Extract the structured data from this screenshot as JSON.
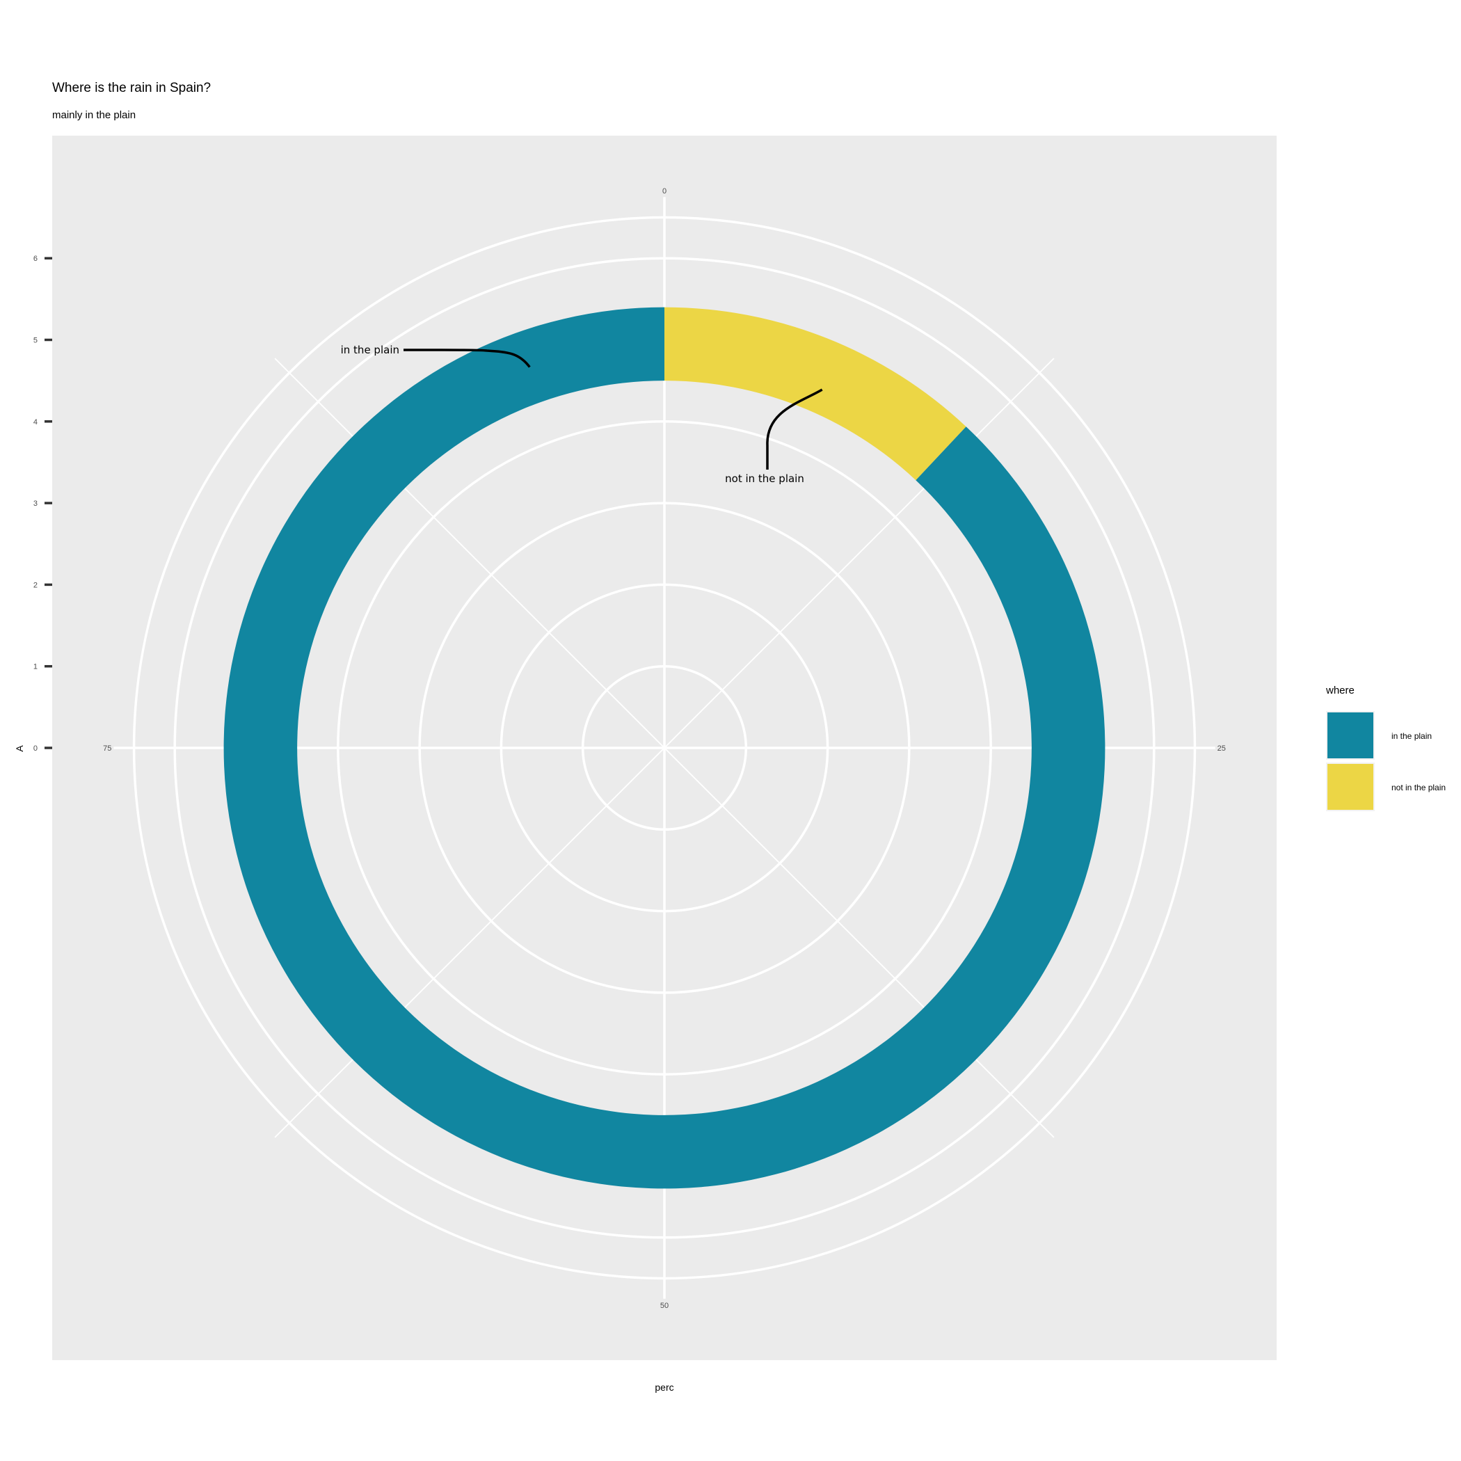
{
  "chart_data": {
    "type": "pie",
    "variant": "donut-polar",
    "title": "Where is the rain in Spain?",
    "subtitle": "mainly in the plain",
    "xlabel": "perc",
    "ylabel": "A",
    "categories": [
      "in the plain",
      "not in the plain"
    ],
    "values": [
      88,
      12
    ],
    "colors": [
      "#1186a0",
      "#ecd645"
    ],
    "ring_inner": 4.5,
    "ring_outer": 5.4,
    "y_ticks": [
      0,
      1,
      2,
      3,
      4,
      5,
      6
    ],
    "y_range": [
      0,
      6.75
    ],
    "theta_ticks": [
      0,
      25,
      50,
      75
    ],
    "theta_range": [
      0,
      100
    ],
    "grid": true,
    "annotations": [
      {
        "label": "in the plain",
        "category": "in the plain"
      },
      {
        "label": "not in the plain",
        "category": "not in the plain"
      }
    ],
    "legend": {
      "title": "where",
      "position": "right",
      "items": [
        "in the plain",
        "not in the plain"
      ]
    }
  }
}
